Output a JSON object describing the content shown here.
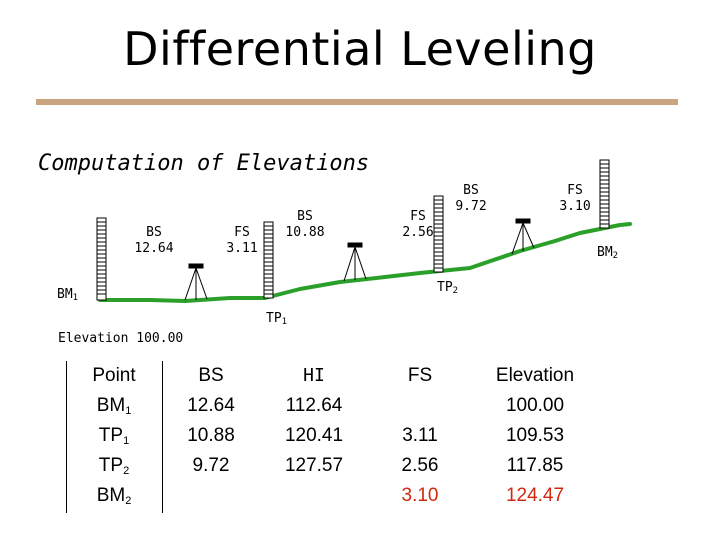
{
  "title": "Differential Leveling",
  "subtitle": "Computation of Elevations",
  "diagram": {
    "readings": [
      {
        "type": "BS",
        "value": "12.64"
      },
      {
        "type": "FS",
        "value": "3.11"
      },
      {
        "type": "BS",
        "value": "10.88"
      },
      {
        "type": "FS",
        "value": "2.56"
      },
      {
        "type": "BS",
        "value": "9.72"
      },
      {
        "type": "FS",
        "value": "3.10"
      }
    ],
    "points": {
      "bm1": "BM",
      "bm1_sub": "1",
      "tp1": "TP",
      "tp1_sub": "1",
      "tp2": "TP",
      "tp2_sub": "2",
      "bm2": "BM",
      "bm2_sub": "2"
    },
    "elevation_label": "Elevation 100.00",
    "colors": {
      "ground": "#2aa02a",
      "rule": "#c8a47f",
      "highlight": "#d02810"
    }
  },
  "table": {
    "headers": {
      "point": "Point",
      "bs": "BS",
      "hi": "HI",
      "fs": "FS",
      "elevation": "Elevation"
    },
    "rows": [
      {
        "point": "BM",
        "sub": "1",
        "bs": "12.64",
        "hi": "112.64",
        "fs": "",
        "elevation": "100.00"
      },
      {
        "point": "TP",
        "sub": "1",
        "bs": "10.88",
        "hi": "120.41",
        "fs": "3.11",
        "elevation": "109.53"
      },
      {
        "point": "TP",
        "sub": "2",
        "bs": "9.72",
        "hi": "127.57",
        "fs": "2.56",
        "elevation": "117.85"
      },
      {
        "point": "BM",
        "sub": "2",
        "bs": "",
        "hi": "",
        "fs": "3.10",
        "elevation": "124.47"
      }
    ]
  }
}
